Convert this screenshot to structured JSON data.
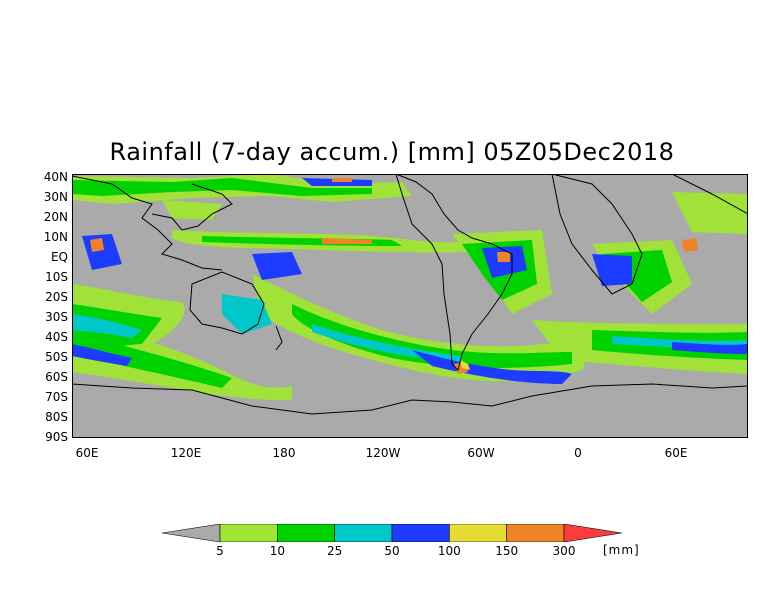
{
  "title": "Rainfall (7-day accum.) [mm] 05Z05Dec2018",
  "map": {
    "lat_labels": [
      "40N",
      "30N",
      "20N",
      "10N",
      "EQ",
      "10S",
      "20S",
      "30S",
      "40S",
      "50S",
      "60S",
      "70S",
      "80S",
      "90S"
    ],
    "lon_labels": [
      "60E",
      "120E",
      "180",
      "120W",
      "60W",
      "0",
      "60E"
    ],
    "colors": {
      "no_rain": "#aaaaaa",
      "c5": "#a0e632",
      "c10": "#00d200",
      "c25": "#00c8c8",
      "c50": "#1e3cff",
      "c100": "#e6dc32",
      "c150": "#f08228",
      "c300": "#fa3c3c"
    }
  },
  "colorbar": {
    "labels": [
      "5",
      "10",
      "25",
      "50",
      "100",
      "150",
      "300"
    ],
    "unit": "[mm]",
    "below_color": "#aaaaaa",
    "colors": [
      "#a0e632",
      "#00d200",
      "#00c8c8",
      "#1e3cff",
      "#e6dc32",
      "#f08228"
    ],
    "above_color": "#fa3c3c"
  }
}
